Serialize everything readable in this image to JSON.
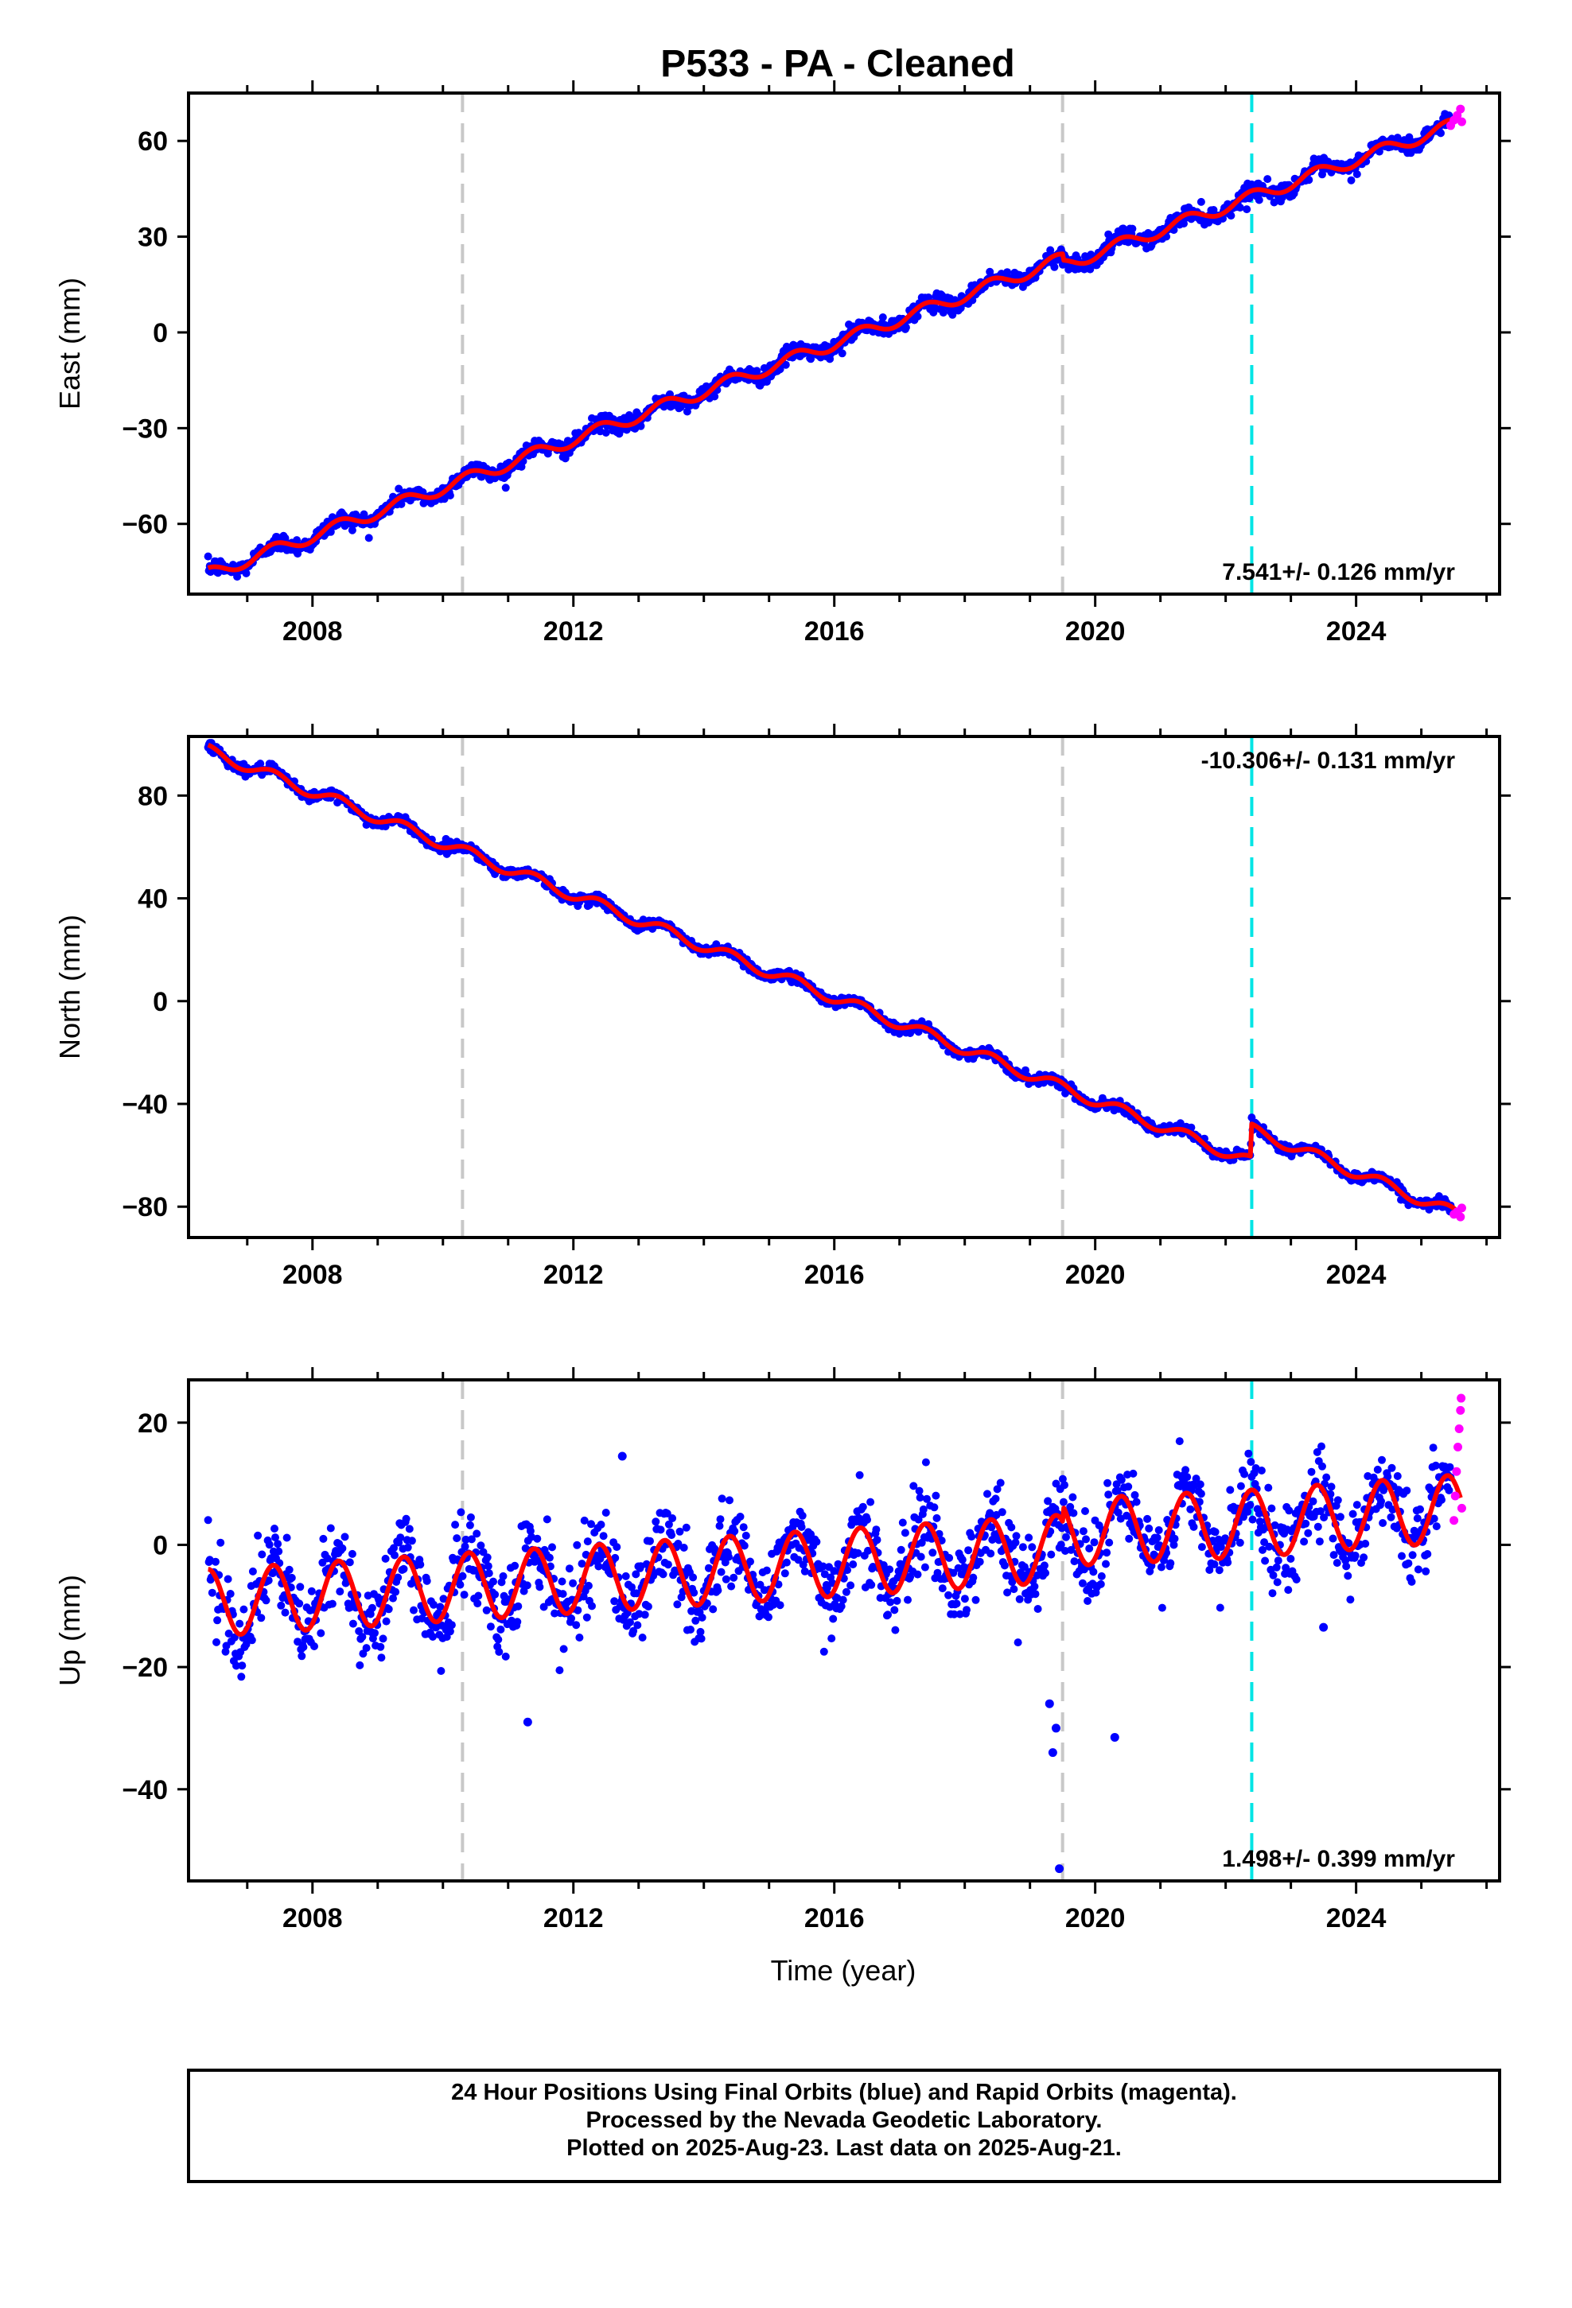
{
  "title": "P533  - PA - Cleaned",
  "xlabel": "Time (year)",
  "colors": {
    "final": "#0000ff",
    "rapid": "#ff00ff",
    "model": "#ff0000",
    "antenna_change": "#c8c8c8",
    "earthquake": "#00e5e5"
  },
  "caption": {
    "line1": "24 Hour Positions Using Final Orbits (blue) and Rapid Orbits (magenta).",
    "line2": "Processed by the Nevada Geodetic Laboratory.",
    "line3": "Plotted on 2025-Aug-23. Last data on 2025-Aug-21."
  },
  "chart_data": [
    {
      "type": "scatter",
      "ylabel": "East (mm)",
      "rate_text": "7.541+/- 0.126 mm/yr",
      "rate_position": "bottom-right",
      "xlim": [
        2006.1,
        2026.2
      ],
      "ylim": [
        -82,
        75
      ],
      "xticks": [
        2008,
        2012,
        2016,
        2020,
        2024
      ],
      "yticks": [
        -60,
        -30,
        0,
        30,
        60
      ],
      "vlines_gray": [
        2010.3,
        2019.5
      ],
      "vlines_cyan": [
        2022.4
      ],
      "data_span": [
        2006.4,
        2025.6
      ],
      "model": {
        "trend": [
          [
            2006.4,
            -75.8
          ],
          [
            2019.5,
            23.0
          ],
          [
            2019.5,
            21.0
          ],
          [
            2022.4,
            42.4
          ],
          [
            2025.6,
            65.8
          ]
        ],
        "annual_amp": 2.0,
        "noise": 1.3
      },
      "rapid_points": [
        [
          2025.45,
          64.8
        ],
        [
          2025.5,
          66.5
        ],
        [
          2025.55,
          68.0
        ],
        [
          2025.6,
          70.0
        ],
        [
          2025.62,
          66.0
        ]
      ]
    },
    {
      "type": "scatter",
      "ylabel": "North (mm)",
      "rate_text": "-10.306+/- 0.131 mm/yr",
      "rate_position": "top-right",
      "xlim": [
        2006.1,
        2026.2
      ],
      "ylim": [
        -92,
        103
      ],
      "xticks": [
        2008,
        2012,
        2016,
        2020,
        2024
      ],
      "yticks": [
        -80,
        -40,
        0,
        40,
        80
      ],
      "vlines_gray": [
        2010.3,
        2019.5
      ],
      "vlines_cyan": [
        2022.4
      ],
      "data_span": [
        2006.4,
        2025.6
      ],
      "model": {
        "trend": [
          [
            2006.4,
            97.5
          ],
          [
            2022.38,
            -62.5
          ],
          [
            2022.4,
            -50.0
          ],
          [
            2025.6,
            -83.5
          ]
        ],
        "annual_amp": 2.2,
        "noise": 1.0
      },
      "rapid_points": [
        [
          2025.5,
          -83.0
        ],
        [
          2025.55,
          -82.0
        ],
        [
          2025.6,
          -84.0
        ],
        [
          2025.62,
          -80.5
        ]
      ]
    },
    {
      "type": "scatter",
      "ylabel": "Up (mm)",
      "rate_text": "1.498+/- 0.399 mm/yr",
      "rate_position": "bottom-right",
      "xlim": [
        2006.1,
        2026.2
      ],
      "ylim": [
        -55,
        27
      ],
      "xticks": [
        2008,
        2012,
        2016,
        2020,
        2024
      ],
      "yticks": [
        -40,
        -20,
        0,
        20
      ],
      "vlines_gray": [
        2010.3,
        2019.5
      ],
      "vlines_cyan": [
        2022.4
      ],
      "data_span": [
        2006.4,
        2025.6
      ],
      "model": {
        "trend": [
          [
            2006.4,
            -9.5
          ],
          [
            2019.5,
            -0.6
          ],
          [
            2019.5,
            2.0
          ],
          [
            2022.4,
            3.5
          ],
          [
            2025.6,
            6.0
          ]
        ],
        "annual_amp": 5.5,
        "noise": 3.5
      },
      "outliers": [
        [
          2019.3,
          -26.0
        ],
        [
          2019.35,
          -34.0
        ],
        [
          2019.4,
          -30.0
        ],
        [
          2019.45,
          -53.0
        ],
        [
          2020.3,
          -31.5
        ],
        [
          2011.3,
          -29.0
        ],
        [
          2012.75,
          14.5
        ],
        [
          2023.5,
          -13.5
        ]
      ],
      "rapid_points": [
        [
          2025.5,
          4.0
        ],
        [
          2025.52,
          8.0
        ],
        [
          2025.54,
          12.0
        ],
        [
          2025.56,
          16.0
        ],
        [
          2025.58,
          19.0
        ],
        [
          2025.6,
          22.0
        ],
        [
          2025.61,
          24.0
        ],
        [
          2025.62,
          6.0
        ]
      ]
    }
  ]
}
